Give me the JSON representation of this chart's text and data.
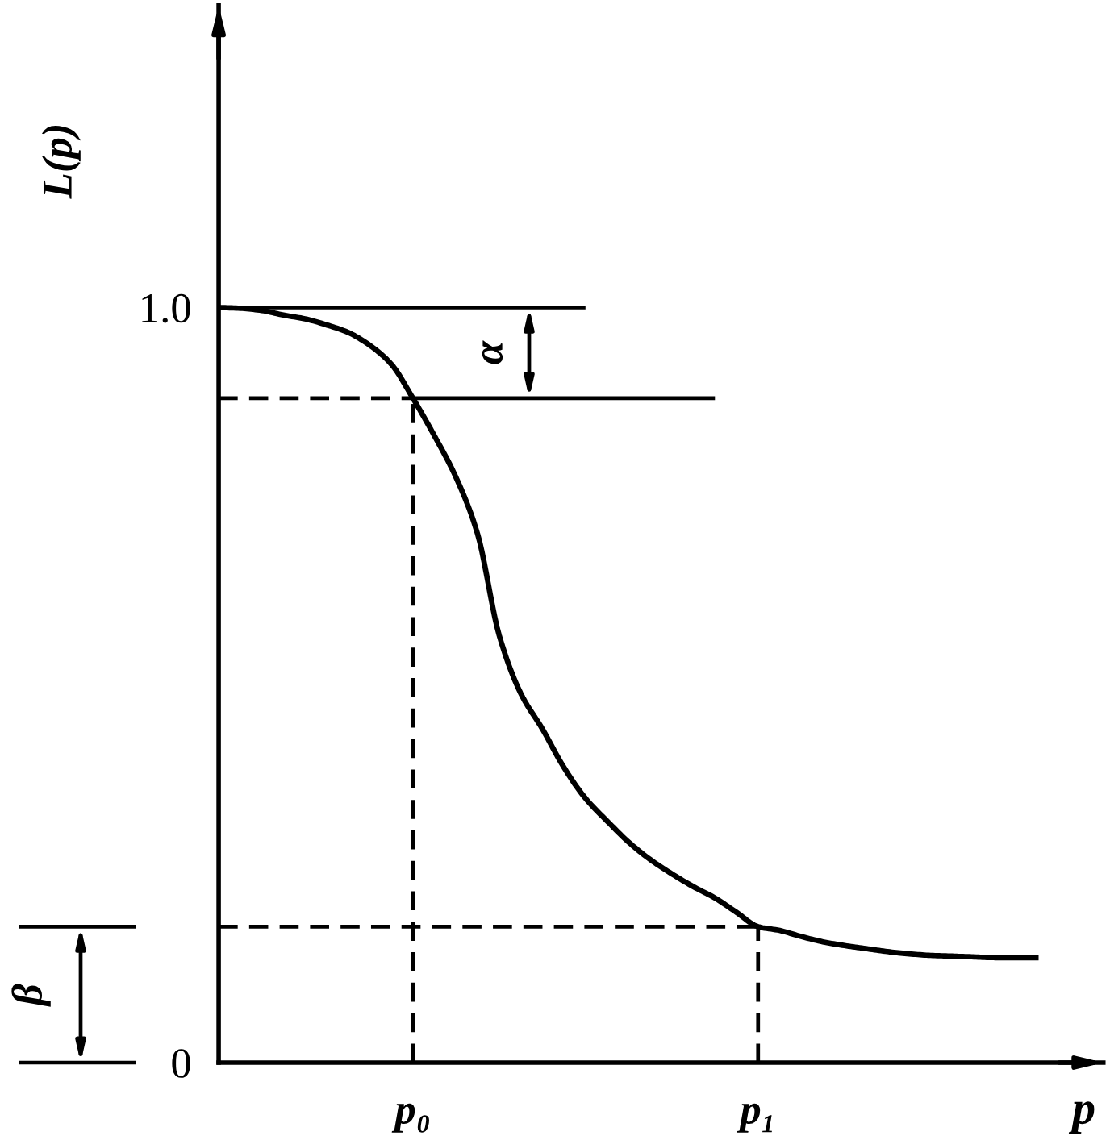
{
  "chart_data": {
    "type": "line",
    "xlabel": "p",
    "ylabel": "L(p)",
    "categories": [
      null,
      null,
      null,
      null,
      null,
      null,
      null,
      null,
      null,
      "p₀",
      null,
      null,
      null,
      null,
      null,
      null,
      null,
      null,
      null,
      null,
      null,
      null,
      null,
      null,
      null,
      "p₁",
      null,
      null,
      null,
      null,
      null,
      null,
      null,
      null,
      null,
      null,
      null,
      null,
      null,
      null,
      null,
      null
    ],
    "ylim": [
      0,
      1.4
    ],
    "yticks": [
      0,
      {
        "value": 1,
        "label": "1.0"
      }
    ],
    "series": [
      {
        "color": "#000000",
        "values": [
          1.0,
          0.999,
          0.996,
          0.99,
          0.985,
          0.977,
          0.967,
          0.95,
          0.925,
          0.88,
          0.83,
          0.775,
          0.7,
          0.566,
          0.489,
          0.442,
          0.391,
          0.35,
          0.32,
          0.292,
          0.269,
          0.25,
          0.233,
          0.218,
          0.199,
          0.18,
          0.175,
          0.167,
          0.16,
          0.155,
          0.151,
          0.147,
          0.144,
          0.142,
          0.141,
          0.14,
          0.139,
          0.139,
          0.139,
          null,
          null,
          null
        ]
      },
      {
        "color": "#000000",
        "values": [
          1.0,
          1.0,
          1.0,
          1.0,
          1.0,
          1.0,
          1.0,
          1.0,
          1.0,
          1.0,
          1.0,
          1.0,
          1.0,
          1.0,
          1.0,
          1.0,
          1.0,
          1.0,
          null,
          null,
          null,
          null,
          null,
          null,
          null,
          null,
          null,
          null,
          null,
          null,
          null,
          null,
          null,
          null,
          null,
          null,
          null,
          null,
          null,
          null,
          null,
          null
        ]
      },
      {
        "color": "#000000",
        "values": [
          null,
          null,
          null,
          null,
          null,
          null,
          null,
          null,
          null,
          0.88,
          0.88,
          0.88,
          0.88,
          0.88,
          0.88,
          0.88,
          0.88,
          0.88,
          0.88,
          0.88,
          0.88,
          0.88,
          0.88,
          0.88,
          null,
          null,
          null,
          null,
          null,
          null,
          null,
          null,
          null,
          null,
          null,
          null,
          null,
          null,
          null,
          null,
          null,
          null
        ]
      },
      {
        "color": "#000000",
        "line_style": "dashed",
        "values": [
          0.88,
          0.88,
          0.88,
          0.88,
          0.88,
          0.88,
          0.88,
          0.88,
          0.88,
          0.88,
          null,
          null,
          null,
          null,
          null,
          null,
          null,
          null,
          null,
          null,
          null,
          null,
          null,
          null,
          null,
          null,
          null,
          null,
          null,
          null,
          null,
          null,
          null,
          null,
          null,
          null,
          null,
          null,
          null,
          null,
          null,
          null
        ]
      },
      {
        "color": "#000000",
        "line_style": "dashed",
        "values": [
          0.18,
          0.18,
          0.18,
          0.18,
          0.18,
          0.18,
          0.18,
          0.18,
          0.18,
          0.18,
          0.18,
          0.18,
          0.18,
          0.18,
          0.18,
          0.18,
          0.18,
          0.18,
          0.18,
          0.18,
          0.18,
          0.18,
          0.18,
          0.18,
          0.18,
          0.18,
          null,
          null,
          null,
          null,
          null,
          null,
          null,
          null,
          null,
          null,
          null,
          null,
          null,
          null,
          null,
          null
        ]
      },
      {
        "color": "#000000",
        "line_style": "dashed",
        "x": [
          "p₀",
          "p₀"
        ],
        "values": [
          0,
          0.88
        ]
      },
      {
        "color": "#000000",
        "line_style": "dashed",
        "x": [
          "p₁",
          "p₁"
        ],
        "values": [
          0,
          0.18
        ]
      }
    ],
    "annotations": [
      "α",
      "β"
    ]
  }
}
